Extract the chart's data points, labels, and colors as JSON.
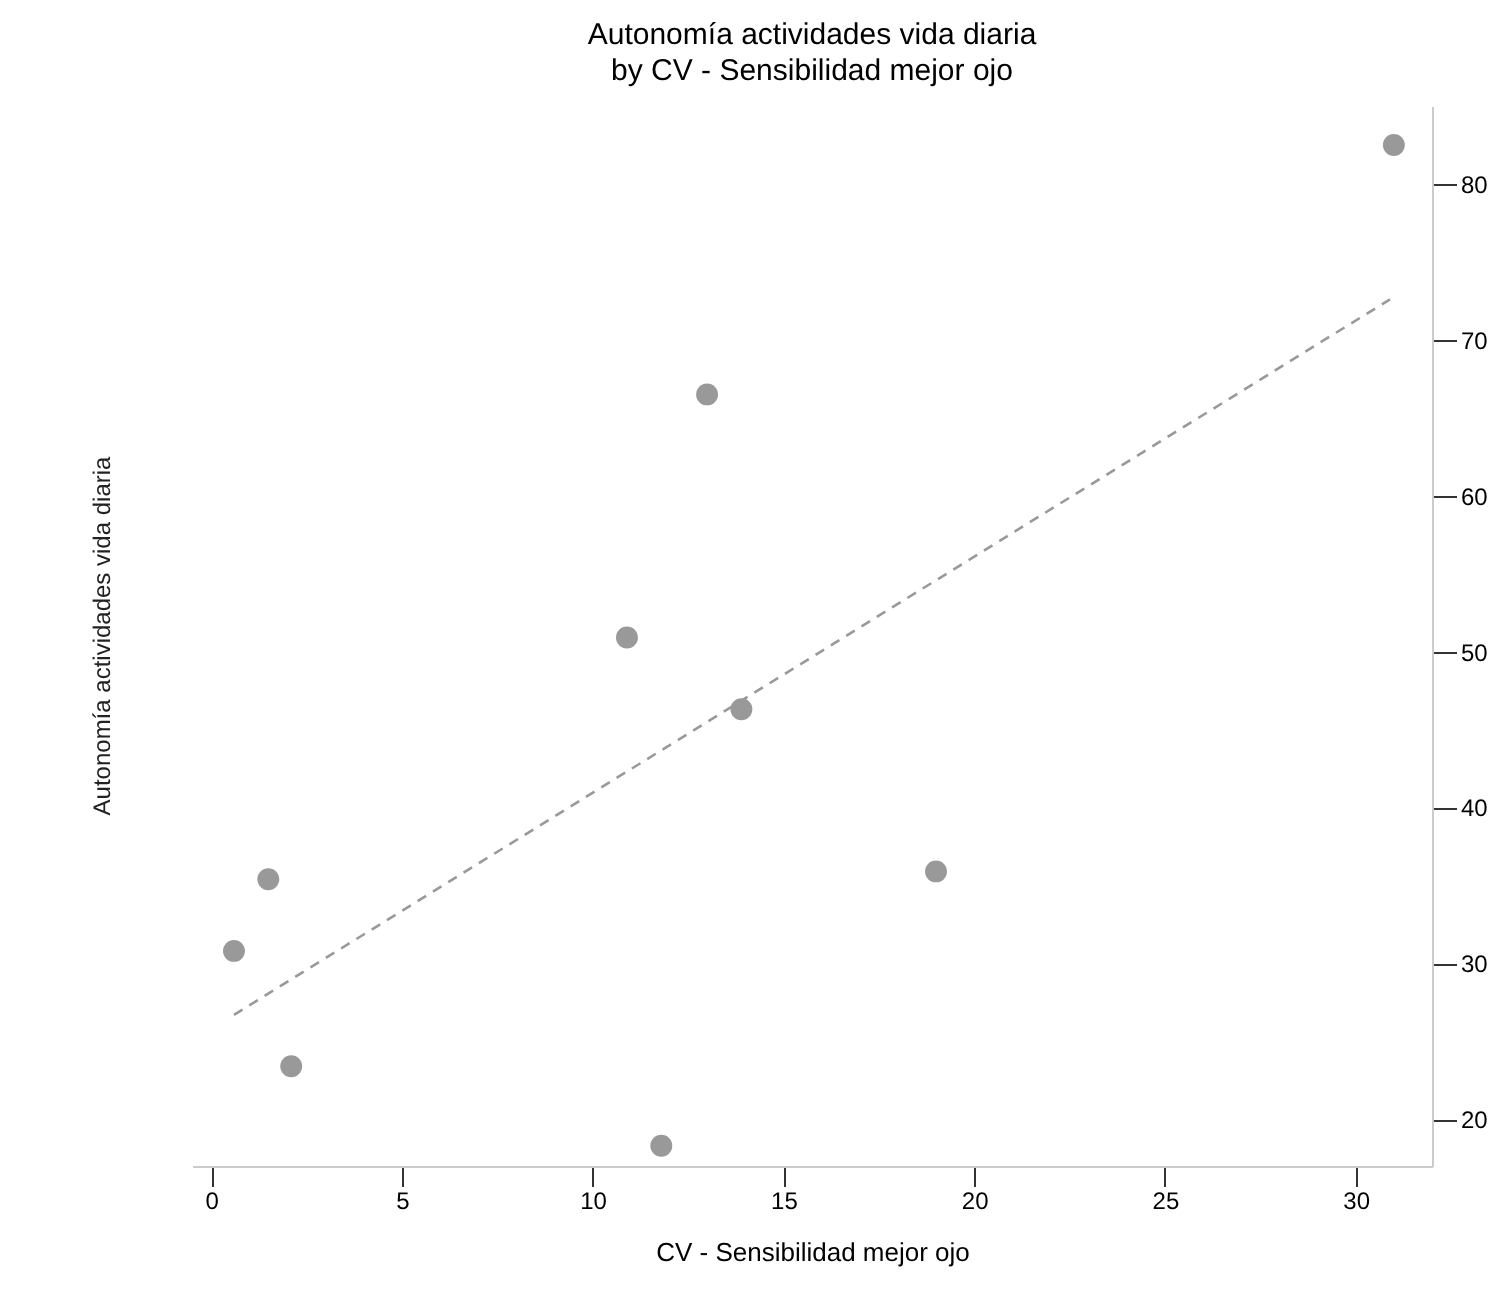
{
  "chart_data": {
    "type": "scatter",
    "title": "Autonomía actividades vida diaria",
    "subtitle": "by CV - Sensibilidad mejor ojo",
    "xlabel": "CV - Sensibilidad mejor ojo",
    "ylabel": "Autonomía actividades vida diaria",
    "x": [
      0.6,
      1.5,
      2.1,
      10.9,
      11.8,
      13.0,
      13.9,
      19.0,
      31.0
    ],
    "series": [
      {
        "marker": "circle",
        "color": "#999999",
        "values": [
          30.8,
          35.4,
          23.4,
          50.9,
          18.3,
          66.5,
          46.3,
          35.9,
          82.5
        ]
      },
      {
        "type": "line",
        "color": "#999999",
        "line_style": "dashed",
        "marker": "none",
        "x": [
          0.6,
          30.9
        ],
        "values": [
          26.7,
          72.6
        ]
      }
    ],
    "xlim": [
      -0.5,
      32
    ],
    "ylim": [
      17,
      85
    ],
    "xticks": [
      0,
      5,
      10,
      15,
      20,
      25,
      30
    ],
    "yticks": [
      20,
      30,
      40,
      50,
      60,
      70,
      80
    ],
    "grid": false
  }
}
